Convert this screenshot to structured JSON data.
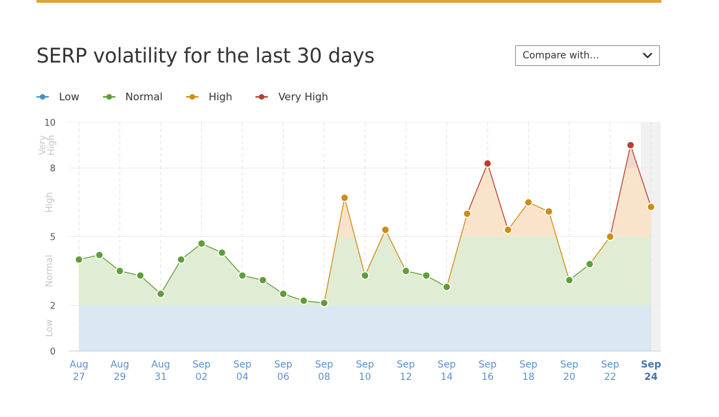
{
  "page": {
    "title": "SERP volatility for the last 30 days",
    "compare": {
      "label": "Compare with…"
    }
  },
  "legend": [
    {
      "label": "Low",
      "color": "#4a90c8"
    },
    {
      "label": "Normal",
      "color": "#5e9e38"
    },
    {
      "label": "High",
      "color": "#d08b12"
    },
    {
      "label": "Very High",
      "color": "#b5402f"
    }
  ],
  "chart_data": {
    "type": "area",
    "ylim": [
      0,
      10
    ],
    "y_ticks": [
      "0",
      "2",
      "5",
      "8",
      "10"
    ],
    "y_bands": [
      {
        "label": "Low",
        "from": 0,
        "to": 2,
        "color": "#dbe8f3"
      },
      {
        "label": "Normal",
        "from": 2,
        "to": 5,
        "color": "#e1ecd5"
      },
      {
        "label": "High",
        "from": 5,
        "to": 8,
        "color": "#f9e4cb"
      },
      {
        "label": "Very High",
        "from": 8,
        "to": 10,
        "color": "#f1d6d0"
      }
    ],
    "x_labels": [
      {
        "index": 0,
        "line1": "Aug",
        "line2": "27"
      },
      {
        "index": 2,
        "line1": "Aug",
        "line2": "29"
      },
      {
        "index": 4,
        "line1": "Aug",
        "line2": "31"
      },
      {
        "index": 6,
        "line1": "Sep",
        "line2": "02"
      },
      {
        "index": 8,
        "line1": "Sep",
        "line2": "04"
      },
      {
        "index": 10,
        "line1": "Sep",
        "line2": "06"
      },
      {
        "index": 12,
        "line1": "Sep",
        "line2": "08"
      },
      {
        "index": 14,
        "line1": "Sep",
        "line2": "10"
      },
      {
        "index": 16,
        "line1": "Sep",
        "line2": "12"
      },
      {
        "index": 18,
        "line1": "Sep",
        "line2": "14"
      },
      {
        "index": 20,
        "line1": "Sep",
        "line2": "16"
      },
      {
        "index": 22,
        "line1": "Sep",
        "line2": "18"
      },
      {
        "index": 24,
        "line1": "Sep",
        "line2": "20"
      },
      {
        "index": 26,
        "line1": "Sep",
        "line2": "22"
      },
      {
        "index": 28,
        "line1": "Sep",
        "line2": "24",
        "current": true
      }
    ],
    "series": [
      {
        "values": [
          4.0,
          4.2,
          3.5,
          3.3,
          2.5,
          4.0,
          4.7,
          4.3,
          3.3,
          3.1,
          2.5,
          2.2,
          2.1,
          6.7,
          3.3,
          5.3,
          3.5,
          3.3,
          2.8,
          6.0,
          8.2,
          5.3,
          6.5,
          6.1,
          3.1,
          3.8,
          5.0,
          9.0,
          6.3
        ]
      }
    ],
    "grid": true,
    "legend_position": "top-left",
    "highlight_last": true
  }
}
